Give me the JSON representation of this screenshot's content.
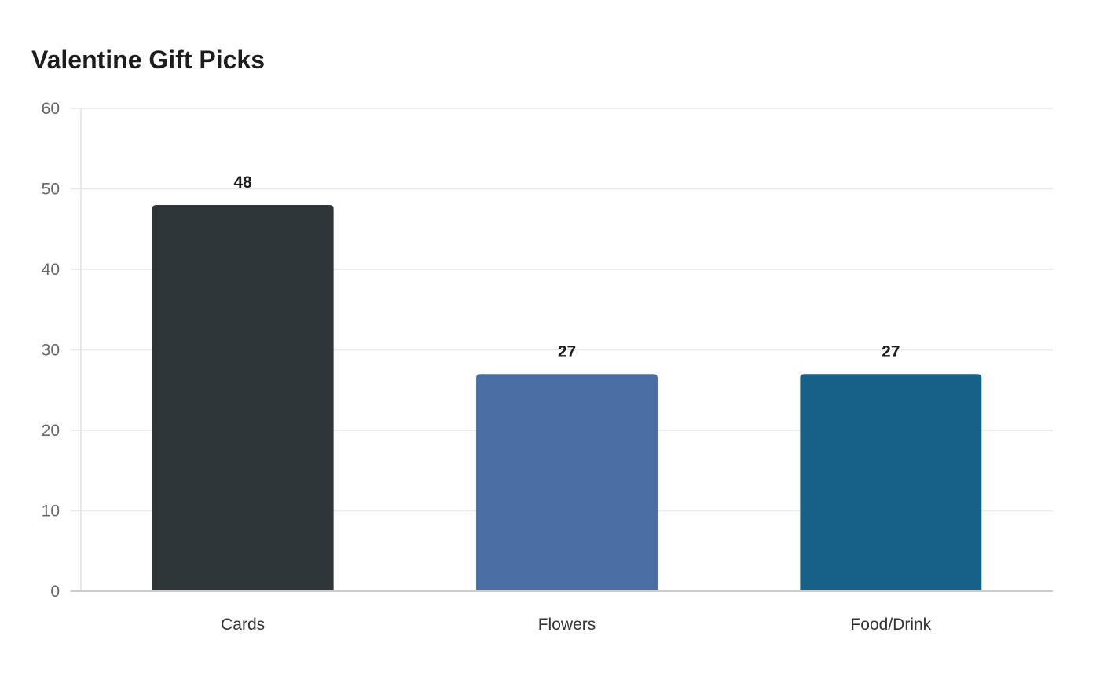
{
  "chart_data": {
    "type": "bar",
    "title": "Valentine Gift Picks",
    "xlabel": "",
    "ylabel": "",
    "categories": [
      "Cards",
      "Flowers",
      "Food/Drink"
    ],
    "values": [
      48,
      27,
      27
    ],
    "colors": [
      "#2e3538",
      "#4a6ea3",
      "#176188"
    ],
    "ylim": [
      0,
      60
    ],
    "yticks": [
      0,
      10,
      20,
      30,
      40,
      50,
      60
    ],
    "grid": true,
    "legend": "none",
    "data_labels": true
  }
}
